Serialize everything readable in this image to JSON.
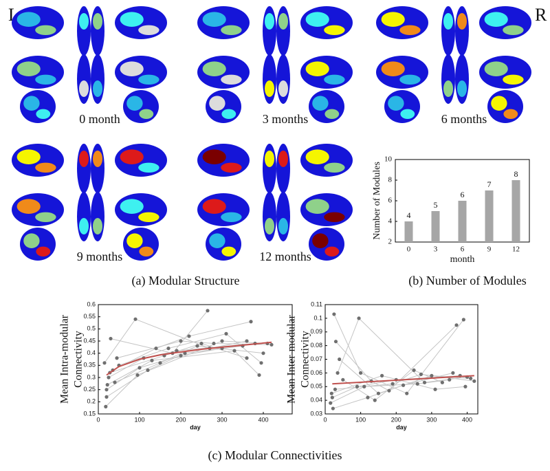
{
  "labels": {
    "left": "L",
    "right": "R",
    "groups": [
      "0 month",
      "3 months",
      "6 months",
      "9 months",
      "12 months"
    ],
    "caption_a": "(a) Modular Structure",
    "caption_b": "(b) Number of Modules",
    "caption_c": "(c) Modular Connectivities"
  },
  "chart_data": [
    {
      "type": "bar",
      "categories": [
        "0",
        "3",
        "6",
        "9",
        "12"
      ],
      "values": [
        4,
        5,
        6,
        7,
        8
      ],
      "color": "#a6a6a6",
      "xlabel": "month",
      "ylabel": "Number of Modules",
      "ylim": [
        2,
        10
      ],
      "yticks": [
        2,
        4,
        6,
        8,
        10
      ]
    },
    {
      "type": "scatter",
      "xlabel": "day",
      "ylabel": [
        "Mean Intra-modular",
        "Connectivity"
      ],
      "xlim": [
        0,
        470
      ],
      "xticks": [
        0,
        100,
        200,
        300,
        400
      ],
      "ylim": [
        0.15,
        0.6
      ],
      "yticks": [
        0.15,
        0.2,
        0.25,
        0.3,
        0.35,
        0.4,
        0.45,
        0.5,
        0.55,
        0.6
      ],
      "point_color": "#6f6f6f",
      "line_color": "#c4c4c4",
      "subjects": [
        {
          "x": [
            20,
            100,
            200,
            300
          ],
          "y": [
            0.25,
            0.34,
            0.39,
            0.42
          ]
        },
        {
          "x": [
            25,
            110,
            190,
            380
          ],
          "y": [
            0.3,
            0.38,
            0.41,
            0.44
          ]
        },
        {
          "x": [
            15,
            90,
            270,
            360
          ],
          "y": [
            0.36,
            0.54,
            0.42,
            0.45
          ]
        },
        {
          "x": [
            30,
            180,
            265
          ],
          "y": [
            0.46,
            0.4,
            0.575
          ]
        },
        {
          "x": [
            20,
            120,
            210,
            350
          ],
          "y": [
            0.22,
            0.33,
            0.4,
            0.43
          ]
        },
        {
          "x": [
            40,
            150,
            240,
            400
          ],
          "y": [
            0.28,
            0.36,
            0.43,
            0.4
          ]
        },
        {
          "x": [
            18,
            95,
            300,
            410
          ],
          "y": [
            0.18,
            0.31,
            0.45,
            0.44
          ]
        },
        {
          "x": [
            35,
            140,
            220,
            370
          ],
          "y": [
            0.33,
            0.42,
            0.47,
            0.53
          ]
        },
        {
          "x": [
            22,
            130,
            330,
            390
          ],
          "y": [
            0.27,
            0.37,
            0.41,
            0.31
          ]
        },
        {
          "x": [
            45,
            200,
            280,
            420
          ],
          "y": [
            0.38,
            0.45,
            0.44,
            0.435
          ]
        },
        {
          "x": [
            28,
            160,
            250,
            360
          ],
          "y": [
            0.32,
            0.39,
            0.44,
            0.38
          ]
        },
        {
          "x": [
            50,
            170,
            310,
            395
          ],
          "y": [
            0.35,
            0.42,
            0.48,
            0.36
          ]
        }
      ],
      "fit": {
        "color": "#c0504d",
        "x": [
          20,
          50,
          100,
          150,
          200,
          250,
          300,
          350,
          420
        ],
        "y": [
          0.31,
          0.345,
          0.375,
          0.393,
          0.405,
          0.416,
          0.425,
          0.433,
          0.445
        ]
      }
    },
    {
      "type": "scatter",
      "xlabel": "day",
      "ylabel": [
        "Mean Inter-modular",
        "Connectivity"
      ],
      "xlim": [
        0,
        430
      ],
      "xticks": [
        0,
        100,
        200,
        300,
        400
      ],
      "ylim": [
        0.03,
        0.11
      ],
      "yticks": [
        0.03,
        0.04,
        0.05,
        0.06,
        0.07,
        0.08,
        0.09,
        0.1,
        0.11
      ],
      "point_color": "#6f6f6f",
      "line_color": "#c4c4c4",
      "subjects": [
        {
          "x": [
            20,
            90,
            200,
            380
          ],
          "y": [
            0.042,
            0.05,
            0.055,
            0.058
          ]
        },
        {
          "x": [
            25,
            100,
            230,
            390
          ],
          "y": [
            0.103,
            0.06,
            0.045,
            0.099
          ]
        },
        {
          "x": [
            30,
            130,
            180,
            370
          ],
          "y": [
            0.083,
            0.054,
            0.047,
            0.095
          ]
        },
        {
          "x": [
            15,
            110,
            260,
            350
          ],
          "y": [
            0.038,
            0.05,
            0.052,
            0.055
          ]
        },
        {
          "x": [
            40,
            150,
            300,
            410
          ],
          "y": [
            0.07,
            0.045,
            0.058,
            0.056
          ]
        },
        {
          "x": [
            22,
            120,
            220,
            360
          ],
          "y": [
            0.034,
            0.042,
            0.051,
            0.06
          ]
        },
        {
          "x": [
            35,
            95,
            280,
            400
          ],
          "y": [
            0.06,
            0.1,
            0.053,
            0.057
          ]
        },
        {
          "x": [
            18,
            160,
            310,
            395
          ],
          "y": [
            0.045,
            0.058,
            0.048,
            0.05
          ]
        },
        {
          "x": [
            50,
            140,
            250,
            330
          ],
          "y": [
            0.055,
            0.04,
            0.062,
            0.053
          ]
        },
        {
          "x": [
            28,
            190,
            270,
            420
          ],
          "y": [
            0.048,
            0.052,
            0.059,
            0.054
          ]
        }
      ],
      "fit": {
        "color": "#c0504d",
        "x": [
          20,
          420
        ],
        "y": [
          0.052,
          0.058
        ]
      }
    }
  ]
}
